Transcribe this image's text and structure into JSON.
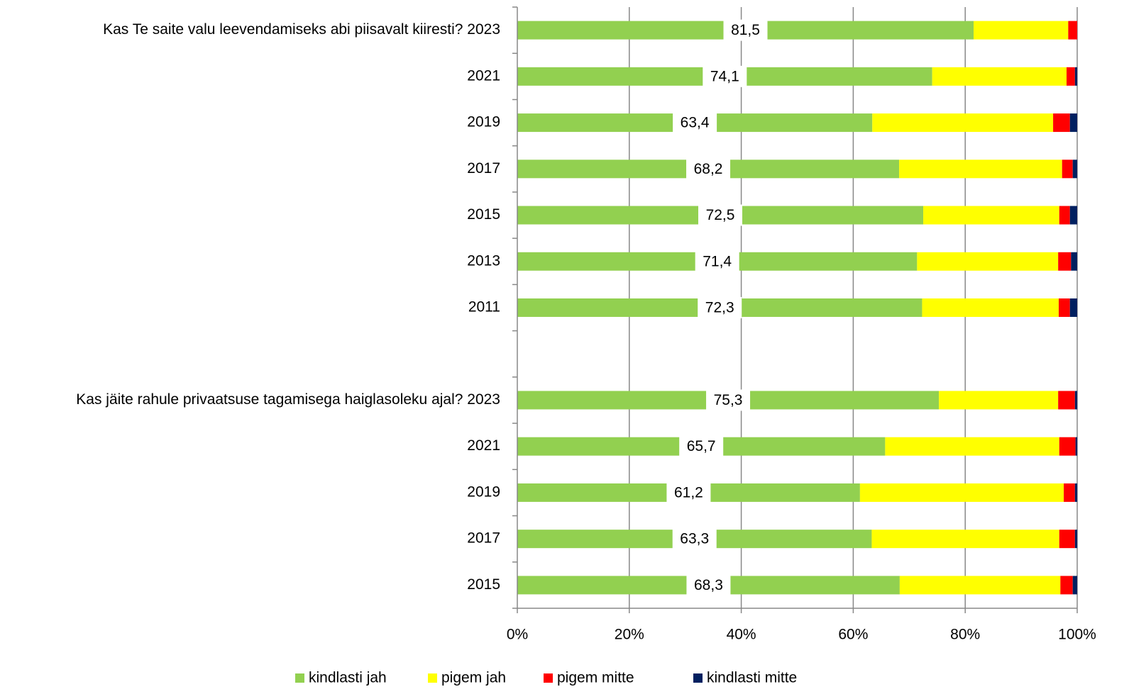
{
  "chart_data": {
    "type": "stacked_bar_horizontal",
    "categories": [
      "Kas Te saite valu leevendamiseks abi piisavalt kiiresti? 2023",
      "2021",
      "2019",
      "2017",
      "2015",
      "2013",
      "2011",
      null,
      "Kas jäite rahule privaatsuse tagamisega haiglasoleku ajal? 2023",
      "2021",
      "2019",
      "2017",
      "2015"
    ],
    "series": [
      {
        "name": "kindlasti jah",
        "color": "#92d050",
        "values": [
          81.5,
          74.1,
          63.4,
          68.2,
          72.5,
          71.4,
          72.3,
          null,
          75.3,
          65.7,
          61.2,
          63.3,
          68.3
        ],
        "value_labels": [
          "81,5",
          "74,1",
          "63,4",
          "68,2",
          "72,5",
          "71,4",
          "72,3",
          null,
          "75,3",
          "65,7",
          "61,2",
          "63,3",
          "68,3"
        ]
      },
      {
        "name": "pigem jah",
        "color": "#ffff00",
        "values": [
          16.9,
          24.0,
          32.3,
          29.1,
          24.3,
          25.2,
          24.4,
          null,
          21.3,
          31.1,
          36.4,
          33.5,
          28.7
        ]
      },
      {
        "name": "pigem mitte",
        "color": "#ff0000",
        "values": [
          1.6,
          1.5,
          3.0,
          1.9,
          1.9,
          2.3,
          2.0,
          null,
          3.0,
          2.9,
          2.0,
          2.8,
          2.2
        ]
      },
      {
        "name": "kindlasti mitte",
        "color": "#002060",
        "values": [
          0,
          0.4,
          1.3,
          0.8,
          1.3,
          1.1,
          1.3,
          null,
          0.4,
          0.3,
          0.4,
          0.4,
          0.8
        ]
      }
    ],
    "xlim": [
      0,
      100
    ],
    "xticks": [
      {
        "value": 0,
        "label": "0%"
      },
      {
        "value": 20,
        "label": "20%"
      },
      {
        "value": 40,
        "label": "40%"
      },
      {
        "value": 60,
        "label": "60%"
      },
      {
        "value": 80,
        "label": "80%"
      },
      {
        "value": 100,
        "label": "100%"
      }
    ],
    "grid": true,
    "legend": "bottom"
  }
}
